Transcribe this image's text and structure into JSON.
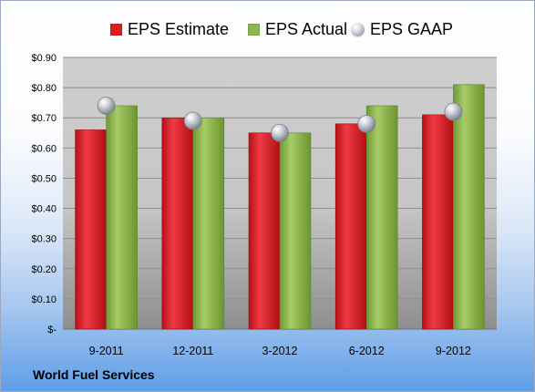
{
  "chart_data": {
    "type": "bar",
    "title": "",
    "xlabel": "",
    "ylabel": "",
    "company": "World Fuel Services",
    "categories": [
      "9-2011",
      "12-2011",
      "3-2012",
      "6-2012",
      "9-2012"
    ],
    "ylim": [
      0,
      0.9
    ],
    "ticks": [
      0,
      0.1,
      0.2,
      0.3,
      0.4,
      0.5,
      0.6,
      0.7,
      0.8,
      0.9
    ],
    "tick_labels": [
      "$-",
      "$0.10",
      "$0.20",
      "$0.30",
      "$0.40",
      "$0.50",
      "$0.60",
      "$0.70",
      "$0.80",
      "$0.90"
    ],
    "series": [
      {
        "name": "EPS Estimate",
        "kind": "bar",
        "color": "#d81f26",
        "values": [
          0.66,
          0.7,
          0.65,
          0.68,
          0.71
        ]
      },
      {
        "name": "EPS Actual",
        "kind": "bar",
        "color": "#8bb650",
        "values": [
          0.74,
          0.7,
          0.65,
          0.74,
          0.81
        ]
      },
      {
        "name": "EPS GAAP",
        "kind": "marker",
        "color": "#aab1bb",
        "values": [
          0.74,
          0.69,
          0.65,
          0.68,
          0.72
        ]
      }
    ],
    "grid": true,
    "legend": "top"
  }
}
